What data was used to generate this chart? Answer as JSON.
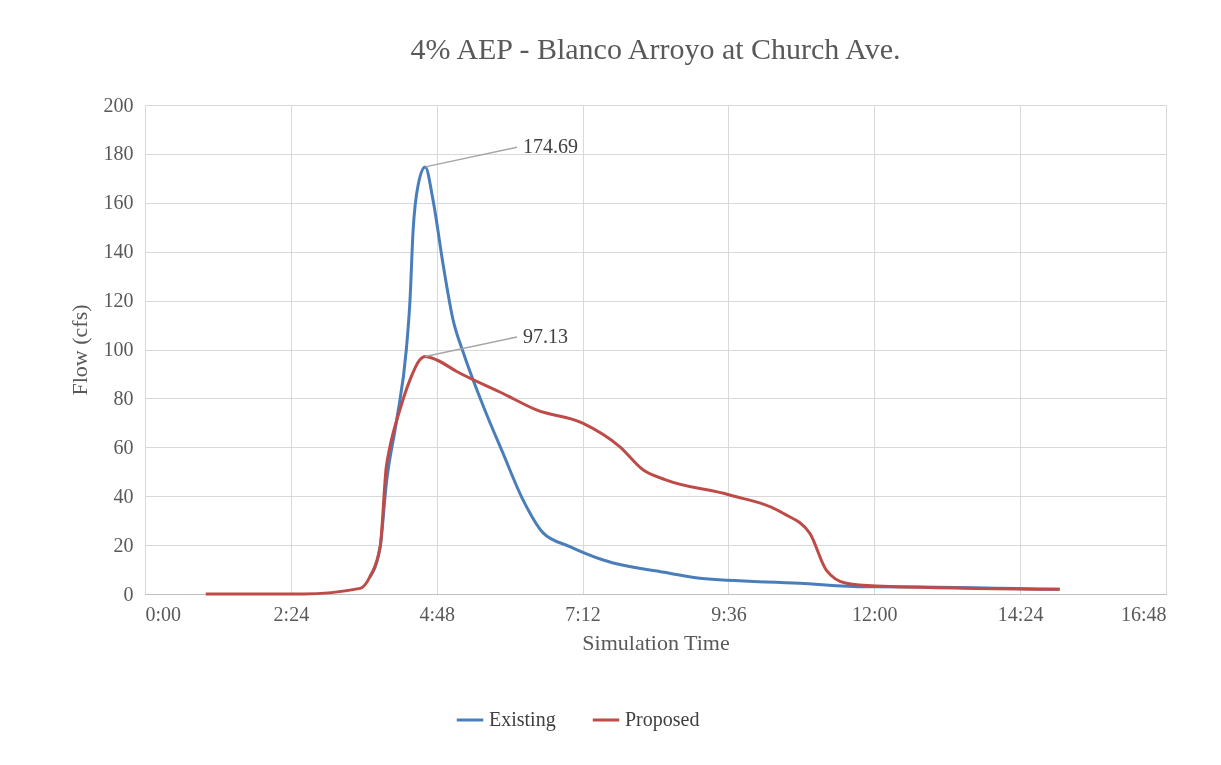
{
  "chart_data": {
    "type": "line",
    "title": "4% AEP - Blanco Arroyo at Church Ave.",
    "xlabel": "Simulation Time",
    "ylabel": "Flow (cfs)",
    "xlim": [
      0,
      16.8
    ],
    "xticks": [
      {
        "value": 0,
        "label": "0:00"
      },
      {
        "value": 2.4,
        "label": "2:24"
      },
      {
        "value": 4.8,
        "label": "4:48"
      },
      {
        "value": 7.2,
        "label": "7:12"
      },
      {
        "value": 9.6,
        "label": "9:36"
      },
      {
        "value": 12,
        "label": "12:00"
      },
      {
        "value": 14.4,
        "label": "14:24"
      },
      {
        "value": 16.8,
        "label": "16:48"
      }
    ],
    "ylim": [
      0,
      200
    ],
    "yticks": [
      0,
      20,
      40,
      60,
      80,
      100,
      120,
      140,
      160,
      180,
      200
    ],
    "grid": true,
    "legend": "bottom",
    "series": [
      {
        "name": "Existing",
        "color": "#4a7ebb",
        "x": [
          3.7,
          3.87,
          3.97,
          4.14,
          4.3,
          4.36,
          4.41,
          4.5,
          4.61,
          4.74,
          4.91,
          5.07,
          5.24,
          5.57,
          5.89,
          6.22,
          6.55,
          6.99,
          7.54,
          8.63,
          9.13,
          10.77,
          11.87,
          12.03,
          15.05
        ],
        "values": [
          7,
          19.4,
          45,
          71,
          100,
          120,
          148,
          168,
          174.69,
          161,
          134,
          112,
          98.6,
          76.6,
          57.6,
          38.5,
          25,
          19.4,
          13.9,
          8.5,
          6.4,
          4.4,
          3.0,
          3.0,
          1.9
        ]
      },
      {
        "name": "Proposed",
        "color": "#be4b48",
        "x": [
          1.0,
          2.6,
          3.54,
          3.7,
          3.87,
          3.97,
          4.02,
          4.19,
          4.36,
          4.52,
          4.61,
          4.8,
          5.13,
          5.89,
          6.44,
          7.21,
          7.81,
          8.2,
          8.58,
          9.62,
          10.5,
          10.94,
          11.21,
          11.54,
          12.03,
          15.05
        ],
        "values": [
          0,
          0,
          2.3,
          7,
          19.4,
          52,
          59,
          75,
          87.6,
          95.7,
          97.13,
          95.7,
          91,
          82,
          75.3,
          69.8,
          60.3,
          50.7,
          46.6,
          40.5,
          33,
          24.8,
          9.8,
          4.4,
          3.3,
          1.9
        ]
      }
    ],
    "annotations": [
      {
        "text": "174.69",
        "x": 4.61,
        "y": 174.69
      },
      {
        "text": "97.13",
        "x": 4.61,
        "y": 97.13
      }
    ]
  }
}
